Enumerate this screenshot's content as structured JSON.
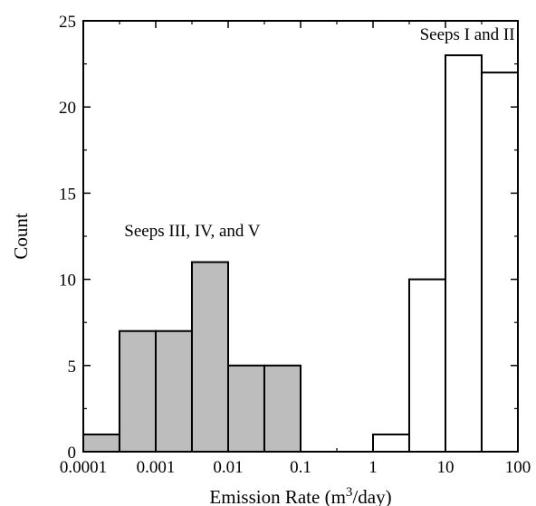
{
  "chart_data": {
    "type": "bar",
    "subtype": "histogram",
    "x_scale": "log",
    "xlim": [
      0.0001,
      100
    ],
    "ylim": [
      0,
      25
    ],
    "grid": false,
    "xlabel": {
      "prefix": "Emission Rate (m",
      "superscript": "3",
      "suffix": "/day)"
    },
    "ylabel": "Count",
    "x_ticks": [
      {
        "value": 0.0001,
        "label": "0.0001"
      },
      {
        "value": 0.001,
        "label": "0.001"
      },
      {
        "value": 0.01,
        "label": "0.01"
      },
      {
        "value": 0.1,
        "label": "0.1"
      },
      {
        "value": 1,
        "label": "1"
      },
      {
        "value": 10,
        "label": "10"
      },
      {
        "value": 100,
        "label": "100"
      }
    ],
    "y_ticks": [
      {
        "value": 0,
        "label": "0"
      },
      {
        "value": 5,
        "label": "5"
      },
      {
        "value": 10,
        "label": "10"
      },
      {
        "value": 15,
        "label": "15"
      },
      {
        "value": 20,
        "label": "20"
      },
      {
        "value": 25,
        "label": "25"
      }
    ],
    "series": [
      {
        "fill": "#bdbdbd",
        "bins": [
          {
            "x0": 0.0001,
            "x1": 0.000316,
            "count": 1
          },
          {
            "x0": 0.000316,
            "x1": 0.001,
            "count": 7
          },
          {
            "x0": 0.001,
            "x1": 0.00316,
            "count": 7
          },
          {
            "x0": 0.00316,
            "x1": 0.01,
            "count": 11
          },
          {
            "x0": 0.01,
            "x1": 0.0316,
            "count": 5
          },
          {
            "x0": 0.0316,
            "x1": 0.1,
            "count": 5
          }
        ]
      },
      {
        "fill": "#ffffff",
        "bins": [
          {
            "x0": 1,
            "x1": 3.16,
            "count": 1
          },
          {
            "x0": 3.16,
            "x1": 10,
            "count": 10
          },
          {
            "x0": 10,
            "x1": 31.6,
            "count": 23
          },
          {
            "x0": 31.6,
            "x1": 100,
            "count": 22
          }
        ]
      }
    ],
    "annotations": [
      {
        "text": "Seeps III, IV, and V",
        "x": 0.0032,
        "y": 12.5
      },
      {
        "text": "Seeps I and II",
        "x": 20,
        "y": 23.9
      }
    ]
  }
}
